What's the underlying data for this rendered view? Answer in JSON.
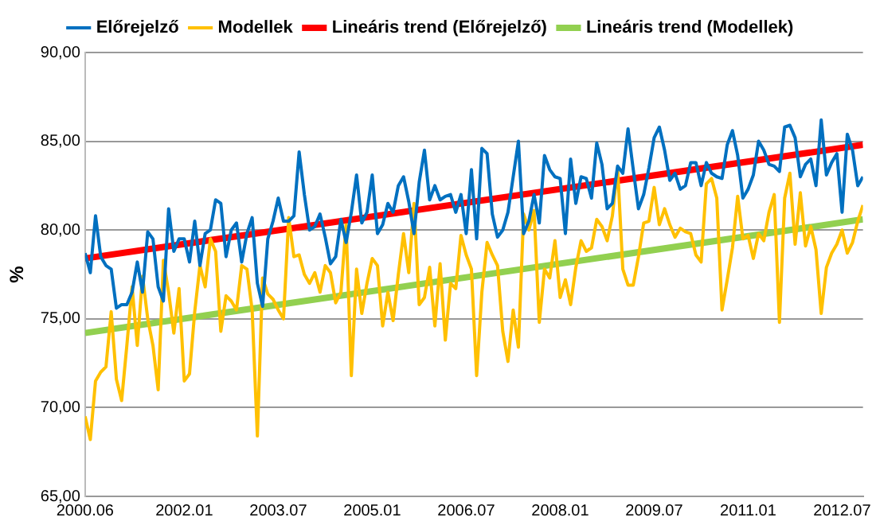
{
  "chart_data": {
    "type": "line",
    "ylabel": "%",
    "x": [
      "2000-06",
      "2000-07",
      "2000-08",
      "2000-09",
      "2000-10",
      "2000-11",
      "2000-12",
      "2001-01",
      "2001-02",
      "2001-03",
      "2001-04",
      "2001-05",
      "2001-06",
      "2001-07",
      "2001-08",
      "2001-09",
      "2001-10",
      "2001-11",
      "2001-12",
      "2002-01",
      "2002-02",
      "2002-03",
      "2002-04",
      "2002-05",
      "2002-06",
      "2002-07",
      "2002-08",
      "2002-09",
      "2002-10",
      "2002-11",
      "2002-12",
      "2003-01",
      "2003-02",
      "2003-03",
      "2003-04",
      "2003-05",
      "2003-06",
      "2003-07",
      "2003-08",
      "2003-09",
      "2003-10",
      "2003-11",
      "2003-12",
      "2004-01",
      "2004-02",
      "2004-03",
      "2004-04",
      "2004-05",
      "2004-06",
      "2004-07",
      "2004-08",
      "2004-09",
      "2004-10",
      "2004-11",
      "2004-12",
      "2005-01",
      "2005-02",
      "2005-03",
      "2005-04",
      "2005-05",
      "2005-06",
      "2005-07",
      "2005-08",
      "2005-09",
      "2005-10",
      "2005-11",
      "2005-12",
      "2006-01",
      "2006-02",
      "2006-03",
      "2006-04",
      "2006-05",
      "2006-06",
      "2006-07",
      "2006-08",
      "2006-09",
      "2006-10",
      "2006-11",
      "2006-12",
      "2007-01",
      "2007-02",
      "2007-03",
      "2007-04",
      "2007-05",
      "2007-06",
      "2007-07",
      "2007-08",
      "2007-09",
      "2007-10",
      "2007-11",
      "2007-12",
      "2008-01",
      "2008-02",
      "2008-03",
      "2008-04",
      "2008-05",
      "2008-06",
      "2008-07",
      "2008-08",
      "2008-09",
      "2008-10",
      "2008-11",
      "2008-12",
      "2009-01",
      "2009-02",
      "2009-03",
      "2009-04",
      "2009-05",
      "2009-06",
      "2009-07",
      "2009-08",
      "2009-09",
      "2009-10",
      "2009-11",
      "2009-12",
      "2010-01",
      "2010-02",
      "2010-03",
      "2010-04",
      "2010-05",
      "2010-06",
      "2010-07",
      "2010-08",
      "2010-09",
      "2010-10",
      "2010-11",
      "2010-12",
      "2011-01",
      "2011-02",
      "2011-03",
      "2011-04",
      "2011-05",
      "2011-06",
      "2011-07",
      "2011-08",
      "2011-09",
      "2011-10",
      "2011-11",
      "2011-12",
      "2012-01",
      "2012-02",
      "2012-03",
      "2012-04",
      "2012-05",
      "2012-06",
      "2012-07",
      "2012-08",
      "2012-09",
      "2012-10",
      "2012-11"
    ],
    "series": [
      {
        "name": "Előrejelző",
        "color": "#0070c0",
        "values": [
          78.7,
          77.6,
          80.8,
          78.5,
          78.0,
          77.8,
          75.6,
          75.8,
          75.8,
          76.5,
          78.2,
          76.5,
          79.9,
          79.5,
          76.8,
          76.0,
          81.2,
          78.8,
          79.5,
          79.5,
          78.2,
          80.5,
          78.0,
          79.8,
          80.0,
          81.7,
          81.5,
          78.5,
          80.0,
          80.4,
          78.2,
          79.8,
          80.7,
          77.0,
          75.7,
          79.5,
          80.5,
          81.8,
          80.5,
          80.5,
          80.8,
          84.4,
          82.0,
          80.0,
          80.2,
          80.9,
          79.6,
          78.1,
          78.5,
          80.6,
          79.3,
          81.0,
          83.1,
          80.4,
          81.0,
          83.1,
          79.8,
          80.3,
          81.5,
          81.0,
          82.5,
          83.0,
          81.6,
          79.8,
          82.7,
          84.5,
          81.7,
          82.5,
          81.7,
          81.9,
          82.0,
          81.0,
          82.0,
          79.8,
          83.4,
          79.5,
          84.6,
          84.3,
          80.9,
          79.6,
          80.0,
          81.0,
          83.0,
          85.0,
          79.8,
          80.5,
          82.0,
          80.4,
          84.2,
          83.4,
          83.0,
          82.9,
          79.8,
          84.0,
          81.5,
          83.0,
          82.9,
          81.8,
          84.9,
          83.7,
          81.2,
          81.5,
          83.6,
          83.2,
          85.7,
          83.4,
          81.2,
          82.0,
          83.5,
          85.2,
          85.8,
          84.5,
          82.8,
          83.2,
          82.3,
          82.5,
          83.8,
          83.8,
          82.5,
          83.8,
          83.2,
          83.0,
          82.9,
          84.8,
          85.6,
          84.2,
          81.8,
          82.3,
          83.1,
          85.0,
          84.5,
          83.7,
          83.6,
          83.3,
          85.8,
          85.9,
          85.2,
          83.0,
          83.7,
          84.0,
          82.5,
          86.2,
          83.1,
          83.8,
          84.3,
          81.0,
          85.4,
          84.5,
          82.5,
          83.0
        ]
      },
      {
        "name": "Modellek",
        "color": "#ffc000",
        "values": [
          69.5,
          68.2,
          71.5,
          72.0,
          72.3,
          75.4,
          71.6,
          70.4,
          73.5,
          76.8,
          73.5,
          77.4,
          75.0,
          73.5,
          71.0,
          78.3,
          76.5,
          74.2,
          76.7,
          71.5,
          71.9,
          75.4,
          78.0,
          76.8,
          79.5,
          78.8,
          74.3,
          76.3,
          76.0,
          75.5,
          78.0,
          77.8,
          75.5,
          68.4,
          77.3,
          76.4,
          76.1,
          75.5,
          75.0,
          80.7,
          78.5,
          78.6,
          77.5,
          77.0,
          77.6,
          76.5,
          78.0,
          77.6,
          75.9,
          76.5,
          80.3,
          71.8,
          77.8,
          75.3,
          77.0,
          78.4,
          78.0,
          74.6,
          76.5,
          74.9,
          77.5,
          79.8,
          77.6,
          81.5,
          75.8,
          76.2,
          77.9,
          74.6,
          78.1,
          73.8,
          77.0,
          76.7,
          79.7,
          78.6,
          77.8,
          71.8,
          76.5,
          79.3,
          78.6,
          78.0,
          74.3,
          72.6,
          75.5,
          73.4,
          80.9,
          80.0,
          81.1,
          74.8,
          77.8,
          77.3,
          79.4,
          76.2,
          77.2,
          75.8,
          77.9,
          79.4,
          78.8,
          79.0,
          80.6,
          80.2,
          79.4,
          80.8,
          83.5,
          77.8,
          76.9,
          76.9,
          78.5,
          80.4,
          80.5,
          82.4,
          80.3,
          81.2,
          80.3,
          79.6,
          80.1,
          79.9,
          79.8,
          78.6,
          78.2,
          82.6,
          82.9,
          81.8,
          75.5,
          77.2,
          79.0,
          81.9,
          79.5,
          79.7,
          78.4,
          79.8,
          79.4,
          81.0,
          82.0,
          74.8,
          81.8,
          83.2,
          79.2,
          82.1,
          79.1,
          80.2,
          78.9,
          75.3,
          77.9,
          78.7,
          79.2,
          80.0,
          78.7,
          79.3,
          80.5,
          81.4
        ]
      },
      {
        "name": "Lineáris trend (Előrejelző)",
        "color": "#ff0000",
        "x": [
          "2000-06",
          "2012-11"
        ],
        "values": [
          78.4,
          84.8
        ]
      },
      {
        "name": "Lineáris trend (Modellek)",
        "color": "#92d050",
        "x": [
          "2000-06",
          "2012-11"
        ],
        "values": [
          74.2,
          80.6
        ]
      }
    ],
    "xlim": [
      "2000-06",
      "2012-11"
    ],
    "xticks": [
      {
        "value": "2000-06",
        "label": "2000.06"
      },
      {
        "value": "2002-01",
        "label": "2002.01"
      },
      {
        "value": "2003-07",
        "label": "2003.07"
      },
      {
        "value": "2005-01",
        "label": "2005.01"
      },
      {
        "value": "2006-07",
        "label": "2006.07"
      },
      {
        "value": "2008-01",
        "label": "2008.01"
      },
      {
        "value": "2009-07",
        "label": "2009.07"
      },
      {
        "value": "2011-01",
        "label": "2011.01"
      },
      {
        "value": "2012-07",
        "label": "2012.07"
      }
    ],
    "ylim": [
      65,
      90
    ],
    "yticks": [
      {
        "value": 65,
        "label": "65,00"
      },
      {
        "value": 70,
        "label": "70,00"
      },
      {
        "value": 75,
        "label": "75,00"
      },
      {
        "value": 80,
        "label": "80,00"
      },
      {
        "value": 85,
        "label": "85,00"
      },
      {
        "value": 90,
        "label": "90,00"
      }
    ],
    "grid": "y",
    "legend": "top",
    "marker": "none",
    "line_style": "solid"
  }
}
